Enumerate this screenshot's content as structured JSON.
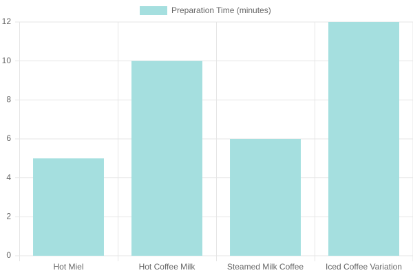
{
  "chart_data": {
    "type": "bar",
    "legend": "Preparation Time (minutes)",
    "categories": [
      "Hot Miel",
      "Hot Coffee Milk",
      "Steamed Milk Coffee",
      "Iced Coffee Variation"
    ],
    "values": [
      5,
      10,
      6,
      12
    ],
    "color": "#a5dfdf",
    "ylim": [
      0,
      12
    ],
    "yticks": [
      0,
      2,
      4,
      6,
      8,
      10,
      12
    ],
    "grid": true
  }
}
